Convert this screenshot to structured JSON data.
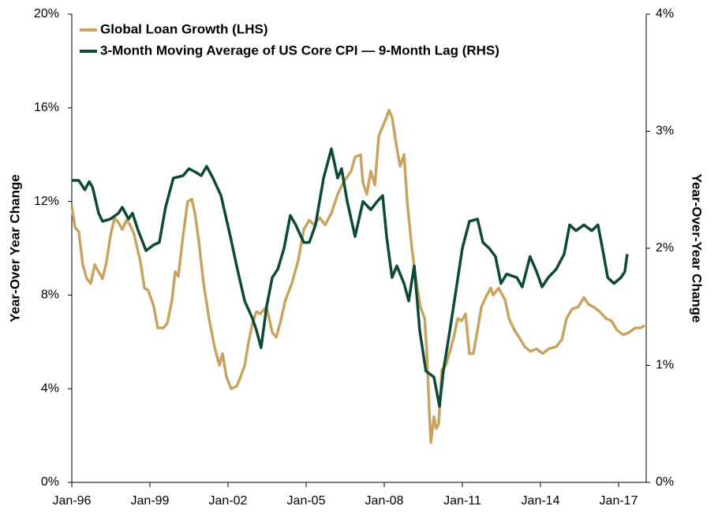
{
  "chart_data": {
    "type": "line",
    "ylabel": "Year-Over Year Change",
    "y2label": "Year-Over-Year Change",
    "xlim": [
      1996,
      2018.06
    ],
    "xticks": [
      {
        "value": 1996,
        "label": "Jan-96"
      },
      {
        "value": 1999,
        "label": "Jan-99"
      },
      {
        "value": 2002,
        "label": "Jan-02"
      },
      {
        "value": 2005,
        "label": "Jan-05"
      },
      {
        "value": 2008,
        "label": "Jan-08"
      },
      {
        "value": 2011,
        "label": "Jan-11"
      },
      {
        "value": 2014,
        "label": "Jan-14"
      },
      {
        "value": 2017,
        "label": "Jan-17"
      }
    ],
    "ylim": [
      0,
      20
    ],
    "yticks": [
      {
        "value": 0,
        "label": "0%"
      },
      {
        "value": 4,
        "label": "4%"
      },
      {
        "value": 8,
        "label": "8%"
      },
      {
        "value": 12,
        "label": "12%"
      },
      {
        "value": 16,
        "label": "16%"
      },
      {
        "value": 20,
        "label": "20%"
      }
    ],
    "y2lim": [
      0,
      4
    ],
    "y2ticks": [
      {
        "value": 0,
        "label": "0%"
      },
      {
        "value": 1,
        "label": "1%"
      },
      {
        "value": 2,
        "label": "2%"
      },
      {
        "value": 3,
        "label": "3%"
      },
      {
        "value": 4,
        "label": "4%"
      }
    ],
    "legend": "upper left",
    "series": [
      {
        "name": "Global Loan Growth (LHS)",
        "color": "#c9a461",
        "axis": "y",
        "x": [
          1996.0,
          1996.12,
          1996.27,
          1996.42,
          1996.58,
          1996.73,
          1996.88,
          1997.03,
          1997.18,
          1997.33,
          1997.48,
          1997.64,
          1997.79,
          1997.94,
          1998.09,
          1998.24,
          1998.39,
          1998.64,
          1998.79,
          1998.94,
          1999.15,
          1999.3,
          1999.52,
          1999.67,
          1999.85,
          1999.97,
          2000.09,
          2000.27,
          2000.45,
          2000.61,
          2000.73,
          2000.88,
          2001.06,
          2001.27,
          2001.48,
          2001.67,
          2001.79,
          2001.94,
          2002.12,
          2002.33,
          2002.48,
          2002.64,
          2002.79,
          2002.94,
          2003.09,
          2003.24,
          2003.48,
          2003.7,
          2003.85,
          2004.0,
          2004.21,
          2004.45,
          2004.7,
          2004.91,
          2005.12,
          2005.3,
          2005.52,
          2005.73,
          2005.97,
          2006.21,
          2006.42,
          2006.73,
          2006.88,
          2007.09,
          2007.18,
          2007.33,
          2007.48,
          2007.64,
          2007.79,
          2007.94,
          2008.09,
          2008.18,
          2008.3,
          2008.45,
          2008.61,
          2008.76,
          2008.88,
          2009.06,
          2009.24,
          2009.39,
          2009.55,
          2009.64,
          2009.73,
          2009.79,
          2009.91,
          2010.0,
          2010.09,
          2010.21,
          2010.36,
          2010.52,
          2010.67,
          2010.82,
          2010.97,
          2011.12,
          2011.27,
          2011.42,
          2011.58,
          2011.73,
          2011.94,
          2012.09,
          2012.18,
          2012.39,
          2012.64,
          2012.79,
          2013.0,
          2013.18,
          2013.39,
          2013.61,
          2013.85,
          2014.09,
          2014.3,
          2014.61,
          2014.82,
          2015.0,
          2015.21,
          2015.45,
          2015.67,
          2015.85,
          2016.03,
          2016.27,
          2016.52,
          2016.73,
          2016.94,
          2017.18,
          2017.39,
          2017.64,
          2017.85,
          2018.0
        ],
        "values": [
          11.8,
          10.9,
          10.7,
          9.3,
          8.7,
          8.5,
          9.3,
          9.0,
          8.7,
          9.4,
          10.5,
          11.3,
          11.1,
          10.8,
          11.2,
          11.0,
          10.6,
          9.4,
          8.3,
          8.2,
          7.5,
          6.6,
          6.6,
          6.8,
          7.8,
          9.0,
          8.8,
          10.5,
          12.0,
          12.1,
          11.5,
          10.3,
          8.5,
          7.0,
          5.8,
          5.0,
          5.5,
          4.5,
          4.0,
          4.1,
          4.5,
          5.0,
          6.0,
          6.8,
          7.3,
          7.2,
          7.5,
          6.4,
          6.2,
          6.8,
          7.8,
          8.5,
          9.5,
          10.8,
          11.2,
          11.0,
          11.3,
          11.0,
          11.5,
          12.3,
          12.8,
          13.3,
          13.9,
          14.0,
          12.8,
          12.3,
          13.3,
          12.7,
          14.8,
          15.2,
          15.6,
          15.9,
          15.6,
          14.5,
          13.5,
          14.0,
          12.0,
          10.0,
          8.5,
          7.5,
          7.0,
          5.5,
          3.0,
          1.7,
          2.8,
          2.3,
          2.5,
          4.8,
          5.0,
          5.6,
          6.2,
          7.0,
          6.9,
          7.2,
          5.5,
          5.5,
          6.5,
          7.5,
          8.0,
          8.3,
          8.0,
          8.3,
          7.8,
          7.0,
          6.5,
          6.2,
          5.8,
          5.6,
          5.7,
          5.5,
          5.7,
          5.8,
          6.1,
          7.0,
          7.4,
          7.5,
          7.9,
          7.6,
          7.5,
          7.3,
          7.0,
          6.9,
          6.5,
          6.3,
          6.4,
          6.6,
          6.6,
          6.7
        ]
      },
      {
        "name": "3-Month Moving Average of US Core CPI — 9-Month Lag (RHS)",
        "color": "#0d4a35",
        "axis": "y2",
        "x": [
          1996.0,
          1996.27,
          1996.5,
          1996.67,
          1996.8,
          1997.03,
          1997.18,
          1997.48,
          1997.79,
          1997.94,
          1998.18,
          1998.33,
          1998.55,
          1998.85,
          1999.15,
          1999.36,
          1999.6,
          1999.9,
          2000.27,
          2000.5,
          2000.76,
          2000.97,
          2001.18,
          2001.42,
          2001.73,
          2002.09,
          2002.33,
          2002.64,
          2002.94,
          2003.09,
          2003.27,
          2003.48,
          2003.7,
          2003.91,
          2004.15,
          2004.39,
          2004.6,
          2004.91,
          2005.12,
          2005.36,
          2005.67,
          2005.97,
          2006.21,
          2006.36,
          2006.58,
          2006.88,
          2007.18,
          2007.48,
          2007.73,
          2007.94,
          2008.09,
          2008.3,
          2008.48,
          2008.76,
          2008.94,
          2009.15,
          2009.36,
          2009.6,
          2009.91,
          2010.12,
          2010.27,
          2010.52,
          2010.76,
          2011.0,
          2011.27,
          2011.58,
          2011.79,
          2012.03,
          2012.27,
          2012.48,
          2012.7,
          2013.09,
          2013.3,
          2013.6,
          2013.85,
          2014.06,
          2014.3,
          2014.6,
          2014.91,
          2015.12,
          2015.36,
          2015.67,
          2015.97,
          2016.21,
          2016.42,
          2016.58,
          2016.82,
          2017.09,
          2017.24,
          2017.33
        ],
        "values": [
          2.58,
          2.58,
          2.5,
          2.57,
          2.52,
          2.3,
          2.23,
          2.25,
          2.3,
          2.35,
          2.25,
          2.3,
          2.15,
          1.98,
          2.03,
          2.05,
          2.35,
          2.6,
          2.62,
          2.68,
          2.65,
          2.62,
          2.7,
          2.6,
          2.45,
          2.1,
          1.85,
          1.55,
          1.4,
          1.3,
          1.15,
          1.5,
          1.75,
          1.82,
          2.0,
          2.28,
          2.2,
          2.05,
          2.05,
          2.2,
          2.6,
          2.85,
          2.6,
          2.68,
          2.4,
          2.1,
          2.4,
          2.33,
          2.4,
          2.45,
          2.1,
          1.75,
          1.85,
          1.7,
          1.55,
          1.85,
          1.3,
          0.95,
          0.9,
          0.65,
          0.95,
          1.3,
          1.65,
          2.0,
          2.23,
          2.25,
          2.05,
          2.0,
          1.93,
          1.7,
          1.78,
          1.75,
          1.67,
          1.93,
          1.8,
          1.67,
          1.75,
          1.82,
          1.95,
          2.2,
          2.15,
          2.2,
          2.15,
          2.2,
          1.95,
          1.75,
          1.7,
          1.75,
          1.8,
          1.95
        ]
      }
    ]
  }
}
